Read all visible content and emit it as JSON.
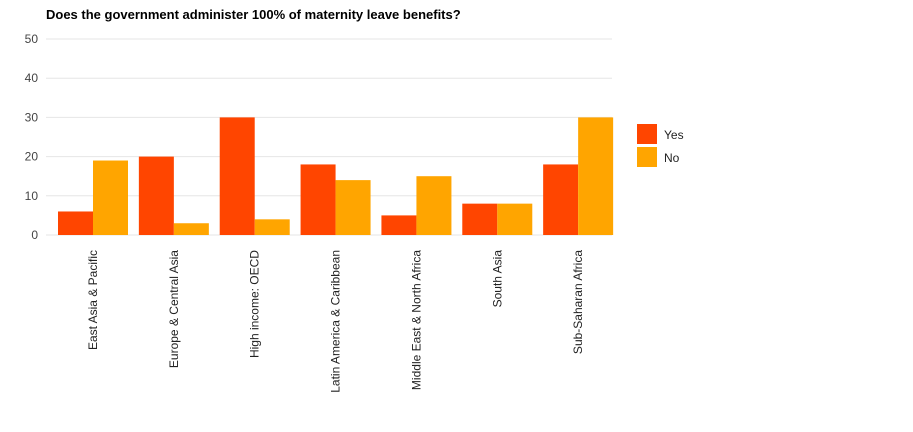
{
  "chart_data": {
    "type": "bar",
    "title": "Does the government administer 100% of maternity leave benefits?",
    "xlabel": "",
    "ylabel": "",
    "ylim": [
      0,
      50
    ],
    "yticks": [
      0,
      10,
      20,
      30,
      40,
      50
    ],
    "grid": true,
    "legend_position": "right",
    "categories": [
      "East Asia & Pacific",
      "Europe & Central Asia",
      "High income: OECD",
      "Latin America & Caribbean",
      "Middle East & North Africa",
      "South Asia",
      "Sub-Saharan Africa"
    ],
    "series": [
      {
        "name": "Yes",
        "color": "#ff4500",
        "values": [
          6,
          20,
          30,
          18,
          5,
          8,
          18
        ]
      },
      {
        "name": "No",
        "color": "#ffa500",
        "values": [
          19,
          3,
          4,
          14,
          15,
          8,
          30
        ]
      }
    ]
  }
}
